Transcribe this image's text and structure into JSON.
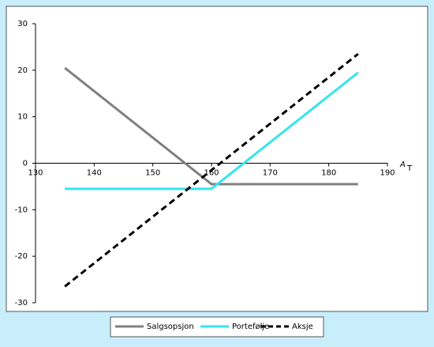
{
  "chart_data": {
    "type": "line",
    "x": [
      135,
      160,
      185
    ],
    "series": [
      {
        "name": "Salgsopsjon",
        "color": "#808080",
        "dash": false,
        "values": [
          20.5,
          -4.5,
          -4.5
        ]
      },
      {
        "name": "Portefølje",
        "color": "#33e6ee",
        "dash": false,
        "values": [
          -5.5,
          -5.5,
          19.5
        ]
      },
      {
        "name": "Aksje",
        "color": "#000000",
        "dash": true,
        "values": [
          -26.5,
          -1.5,
          23.5
        ]
      }
    ],
    "x_label": {
      "text": "A",
      "sub": "T"
    },
    "xlim": [
      130,
      190
    ],
    "xticks": [
      130,
      140,
      150,
      160,
      170,
      180,
      190
    ],
    "ylim": [
      -30,
      30
    ],
    "yticks": [
      -30,
      -20,
      -10,
      0,
      10,
      20,
      30
    ],
    "legend": "bottom"
  }
}
